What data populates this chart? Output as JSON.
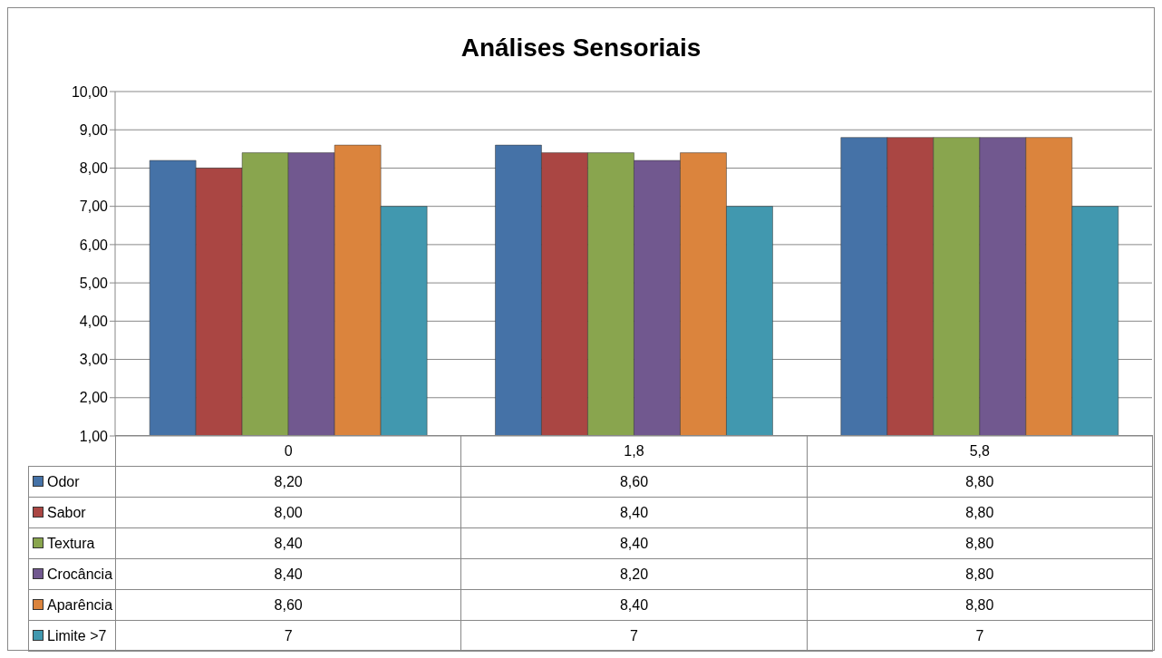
{
  "chart_data": {
    "type": "bar",
    "title": "Análises Sensoriais",
    "categories": [
      "0",
      "1,8",
      "5,8"
    ],
    "series": [
      {
        "name": "Odor",
        "color": "#4572a7",
        "values": [
          8.2,
          8.6,
          8.8
        ],
        "value_labels": [
          "8,20",
          "8,60",
          "8,80"
        ]
      },
      {
        "name": "Sabor",
        "color": "#aa4643",
        "values": [
          8.0,
          8.4,
          8.8
        ],
        "value_labels": [
          "8,00",
          "8,40",
          "8,80"
        ]
      },
      {
        "name": "Textura",
        "color": "#89a54e",
        "values": [
          8.4,
          8.4,
          8.8
        ],
        "value_labels": [
          "8,40",
          "8,40",
          "8,80"
        ]
      },
      {
        "name": "Crocância",
        "color": "#71588f",
        "values": [
          8.4,
          8.2,
          8.8
        ],
        "value_labels": [
          "8,40",
          "8,20",
          "8,80"
        ]
      },
      {
        "name": "Aparência",
        "color": "#db843d",
        "values": [
          8.6,
          8.4,
          8.8
        ],
        "value_labels": [
          "8,60",
          "8,40",
          "8,80"
        ]
      },
      {
        "name": "Limite >7",
        "color": "#4198af",
        "values": [
          7,
          7,
          7
        ],
        "value_labels": [
          "7",
          "7",
          "7"
        ]
      }
    ],
    "ylim": [
      1,
      10
    ],
    "yticks": [
      {
        "value": 1,
        "label": "1,00"
      },
      {
        "value": 2,
        "label": "2,00"
      },
      {
        "value": 3,
        "label": "3,00"
      },
      {
        "value": 4,
        "label": "4,00"
      },
      {
        "value": 5,
        "label": "5,00"
      },
      {
        "value": 6,
        "label": "6,00"
      },
      {
        "value": 7,
        "label": "7,00"
      },
      {
        "value": 8,
        "label": "8,00"
      },
      {
        "value": 9,
        "label": "9,00"
      },
      {
        "value": 10,
        "label": "10,00"
      }
    ],
    "grid": "y",
    "legend": "bottom"
  }
}
